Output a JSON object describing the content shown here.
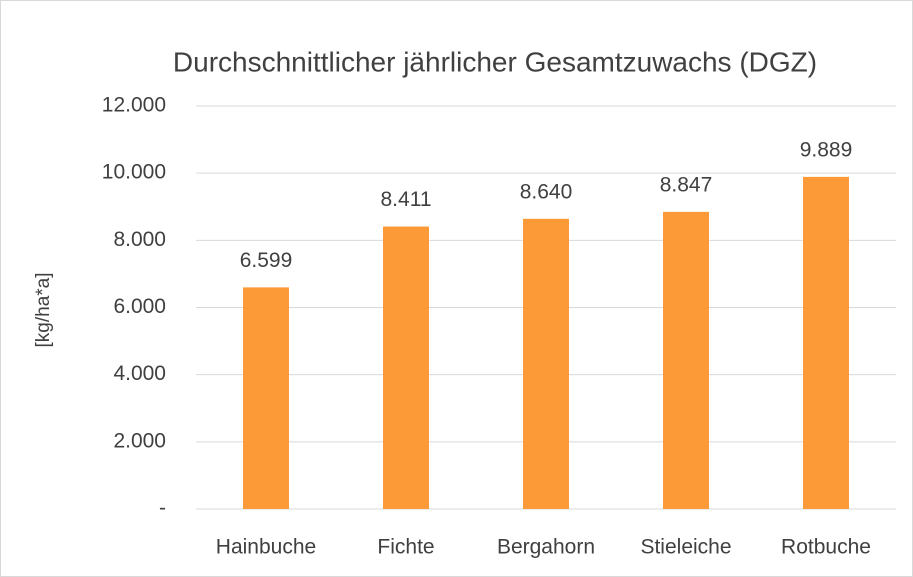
{
  "chart_data": {
    "type": "bar",
    "title": "Durchschnittlicher jährlicher Gesamtzuwachs (DGZ)",
    "y_label": "[kg/ha*a]",
    "categories": [
      "Hainbuche",
      "Fichte",
      "Bergahorn",
      "Stieleiche",
      "Rotbuche"
    ],
    "values": [
      6599,
      8411,
      8640,
      8847,
      9889
    ],
    "value_labels": [
      "6.599",
      "8.411",
      "8.640",
      "8.847",
      "9.889"
    ],
    "color": "#fd9a38",
    "ylim": [
      0,
      12000
    ],
    "yticks": [
      {
        "value": 0,
        "label": "-"
      },
      {
        "value": 2000,
        "label": "2.000"
      },
      {
        "value": 4000,
        "label": "4.000"
      },
      {
        "value": 6000,
        "label": "6.000"
      },
      {
        "value": 8000,
        "label": "8.000"
      },
      {
        "value": 10000,
        "label": "10.000"
      },
      {
        "value": 12000,
        "label": "12.000"
      }
    ],
    "grid": true
  }
}
